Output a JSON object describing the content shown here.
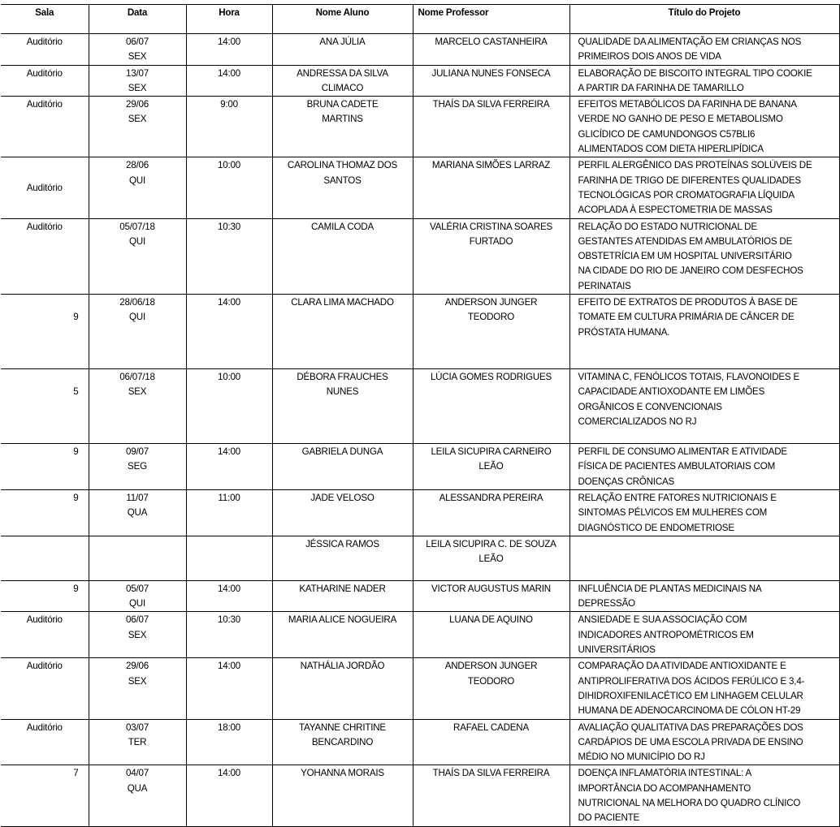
{
  "headers": {
    "sala": "Sala",
    "data": "Data",
    "hora": "Hora",
    "aluno": "Nome  Aluno",
    "professor": "Nome Professor",
    "titulo": "Título do Projeto"
  },
  "rows": [
    {
      "sala": "Auditório",
      "data": "06/07\nSEX",
      "hora": "14:00",
      "aluno": "ANA JÚLIA",
      "professor": "MARCELO CASTANHEIRA",
      "titulo": "QUALIDADE DA ALIMENTAÇÃO EM CRIANÇAS NOS\nPRIMEIROS DOIS ANOS DE VIDA"
    },
    {
      "sala": "Auditório",
      "data": "13/07\nSEX",
      "hora": "14:00",
      "aluno": "ANDRESSA DA SILVA\nCLIMACO",
      "professor": "JULIANA NUNES FONSECA",
      "titulo": "ELABORAÇÃO DE BISCOITO INTEGRAL TIPO COOKIE\nA PARTIR DA FARINHA DE TAMARILLO"
    },
    {
      "sala": "Auditório",
      "data": "29/06\nSEX",
      "hora": "9:00",
      "aluno": "BRUNA  CADETE\nMARTINS",
      "professor": "THAÍS DA SILVA FERREIRA",
      "titulo": "EFEITOS METABÓLICOS DA FARINHA DE BANANA\nVERDE NO GANHO DE PESO E METABOLISMO\nGLICÍDICO DE CAMUNDONGOS C57BLI6\nALIMENTADOS COM DIETA HIPERLIPÍDICA"
    },
    {
      "sala": "Auditório",
      "data": "28/06\nQUI",
      "hora": "10:00",
      "aluno": "CAROLINA THOMAZ DOS\nSANTOS",
      "professor": "MARIANA SIMÕES LARRAZ",
      "titulo": "PERFIL ALERGÊNICO DAS PROTEÍNAS SOLÚVEIS DE\nFARINHA DE TRIGO DE DIFERENTES QUALIDADES\nTECNOLÓGICAS POR CROMATOGRAFIA LÍQUIDA\nACOPLADA À ESPECTOMETRIA DE MASSAS"
    },
    {
      "sala": "Auditório",
      "data": "05/07/18\nQUI",
      "hora": "10:30",
      "aluno": "CAMILA CODA",
      "professor": "VALÉRIA CRISTINA SOARES\nFURTADO",
      "titulo": "RELAÇÃO DO ESTADO NUTRICIONAL DE\nGESTANTES ATENDIDAS EM AMBULATÓRIOS DE\nOBSTETRÍCIA EM UM HOSPITAL UNIVERSITÁRIO\nNA CIDADE DO RIO DE JANEIRO COM DESFECHOS\nPERINATAIS"
    },
    {
      "sala": "9",
      "data": "28/06/18\nQUI",
      "hora": "14:00",
      "aluno": "CLARA LIMA MACHADO",
      "professor": "ANDERSON JUNGER\nTEODORO",
      "titulo": "EFEITO DE EXTRATOS DE PRODUTOS À BASE DE\nTOMATE EM CULTURA PRIMÁRIA DE CÂNCER DE\nPRÓSTATA HUMANA."
    },
    {
      "sala": "5",
      "data": "06/07/18\nSEX",
      "hora": "10:00",
      "aluno": "DÉBORA FRAUCHES\nNUNES",
      "professor": "LÚCIA GOMES RODRIGUES",
      "titulo": "VITAMINA C, FENÓLICOS TOTAIS, FLAVONOIDES E\nCAPACIDADE ANTIOXODANTE EM LIMÕES\nORGÂNICOS E CONVENCIONAIS\nCOMERCIALIZADOS NO RJ"
    },
    {
      "sala": "9",
      "data": "09/07\nSEG",
      "hora": "14:00",
      "aluno": "GABRIELA DUNGA",
      "professor": "LEILA SICUPIRA CARNEIRO\nLEÃO",
      "titulo": "PERFIL DE CONSUMO ALIMENTAR E ATIVIDADE\nFÍSICA DE PACIENTES AMBULATORIAIS COM\nDOENÇAS CRÔNICAS"
    },
    {
      "sala": "9",
      "data": "11/07\nQUA",
      "hora": "11:00",
      "aluno": "JADE VELOSO",
      "professor": "ALESSANDRA PEREIRA",
      "titulo": "RELAÇÃO ENTRE FATORES NUTRICIONAIS E\nSINTOMAS PÉLVICOS EM MULHERES COM\nDIAGNÓSTICO DE ENDOMETRIOSE"
    },
    {
      "sala": "",
      "data": "",
      "hora": "",
      "aluno": "JÉSSICA RAMOS",
      "professor": "LEILA SICUPIRA C. DE SOUZA\nLEÃO",
      "titulo": ""
    },
    {
      "sala": "9",
      "data": "05/07\nQUI",
      "hora": "14:00",
      "aluno": "KATHARINE NADER",
      "professor": "VICTOR AUGUSTUS MARIN",
      "titulo": "INFLUÊNCIA DE PLANTAS MEDICINAIS NA\nDEPRESSÃO"
    },
    {
      "sala": "Auditório",
      "data": "06/07\nSEX",
      "hora": "10:30",
      "aluno": "MARIA ALICE NOGUEIRA",
      "professor": "LUANA DE AQUINO",
      "titulo": "ANSIEDADE E SUA ASSOCIAÇÃO COM\nINDICADORES ANTROPOMÉTRICOS EM\nUNIVERSITÁRIOS"
    },
    {
      "sala": "Auditório",
      "data": "29/06\nSEX",
      "hora": "14:00",
      "aluno": "NATHÁLIA JORDÃO",
      "professor": "ANDERSON JUNGER\nTEODORO",
      "titulo": "COMPARAÇÃO DA ATIVIDADE ANTIOXIDANTE E\nANTIPROLIFERATIVA DOS ÁCIDOS FERÚLICO E 3,4-\nDIHIDROXIFENILACÉTICO EM LINHAGEM CELULAR\nHUMANA DE ADENOCARCINOMA DE CÓLON HT-29"
    },
    {
      "sala": "Auditório",
      "data": "03/07\nTER",
      "hora": "18:00",
      "aluno": "TAYANNE CHRITINE\nBENCARDINO",
      "professor": "RAFAEL CADENA",
      "titulo": "AVALIAÇÃO QUALITATIVA DAS PREPARAÇÕES DOS\nCARDÁPIOS DE UMA ESCOLA PRIVADA DE ENSINO\nMÉDIO NO MUNICÍPIO DO RJ"
    },
    {
      "sala": "7",
      "data": "04/07\nQUA",
      "hora": "14:00",
      "aluno": "YOHANNA MORAIS",
      "professor": "THAÍS DA SILVA FERREIRA",
      "titulo": "DOENÇA INFLAMATÓRIA INTESTINAL: A\nIMPORTÂNCIA DO ACOMPANHAMENTO\nNUTRICIONAL NA MELHORA DO QUADRO CLÍNICO\nDO PACIENTE"
    }
  ]
}
